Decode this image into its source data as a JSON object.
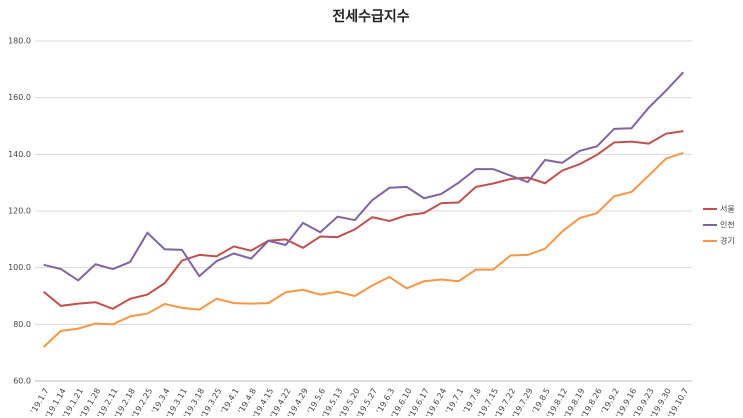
{
  "chart_data": {
    "type": "line",
    "title": "전세수급지수",
    "categories": [
      "'19.1.7",
      "'19.1.14",
      "'19.1.21",
      "'19.1.28",
      "'19.2.11",
      "'19.2.18",
      "'19.2.25",
      "'19.3.4",
      "'19.3.11",
      "'19.3.18",
      "'19.3.25",
      "'19.4.1",
      "'19.4.8",
      "'19.4.15",
      "'19.4.22",
      "'19.4.29",
      "'19.5.6",
      "'19.5.13",
      "'19.5.20",
      "'19.5.27",
      "'19.6.3",
      "'19.6.10",
      "'19.6.17",
      "'19.6.24",
      "'19.7.1",
      "'19.7.8",
      "'19.7.15",
      "'19.7.22",
      "'19.7.29",
      "'19.8.5",
      "'19.8.12",
      "'19.8.19",
      "'19.8.26",
      "'19.9.2",
      "'19.9.16",
      "'19.9.23",
      "'19.9.30",
      "'19.10.7"
    ],
    "series": [
      {
        "name": "서울",
        "color": "#c0504d",
        "values": [
          91.5,
          86.5,
          87.3,
          87.8,
          85.5,
          89,
          90.5,
          94.5,
          102.5,
          104.5,
          104,
          107.5,
          106,
          109.5,
          110,
          107,
          111,
          110.8,
          113.5,
          117.8,
          116.5,
          118.5,
          119.3,
          122.8,
          123,
          128.5,
          129.7,
          131.3,
          131.8,
          129.8,
          134.3,
          136.5,
          139.8,
          144.2,
          144.5,
          143.8,
          147.3,
          148.2
        ]
      },
      {
        "name": "인천",
        "color": "#8064a2",
        "values": [
          101,
          99.5,
          95.5,
          101.2,
          99.5,
          102,
          112.3,
          106.5,
          106.3,
          97,
          102.3,
          105,
          103.2,
          109.5,
          108,
          115.8,
          112.5,
          118,
          116.8,
          123.8,
          128.2,
          128.5,
          124.5,
          126,
          130,
          134.8,
          134.8,
          132.5,
          130.2,
          138,
          137,
          141.2,
          142.8,
          149,
          149.2,
          156.5,
          162.5,
          169
        ]
      },
      {
        "name": "경기",
        "color": "#f79646",
        "values": [
          72,
          77.7,
          78.5,
          80.3,
          80,
          82.8,
          83.8,
          87.2,
          85.8,
          85.2,
          89,
          87.5,
          87.3,
          87.5,
          91.3,
          92.2,
          90.5,
          91.5,
          90,
          93.7,
          96.7,
          92.7,
          95.2,
          95.8,
          95.2,
          99.3,
          99.3,
          104.3,
          104.5,
          106.7,
          112.8,
          117.5,
          119.2,
          125.2,
          126.7,
          132.5,
          138.5,
          140.5
        ]
      }
    ],
    "ylim": [
      60,
      180
    ],
    "yticks": [
      {
        "value": 60,
        "label": "60.0"
      },
      {
        "value": 80,
        "label": "80.0"
      },
      {
        "value": 100,
        "label": "100.0"
      },
      {
        "value": 120,
        "label": "120.0"
      },
      {
        "value": 140,
        "label": "140.0"
      },
      {
        "value": 160,
        "label": "160.0"
      },
      {
        "value": 180,
        "label": "180.0"
      }
    ],
    "grid": true,
    "legend": "right"
  }
}
